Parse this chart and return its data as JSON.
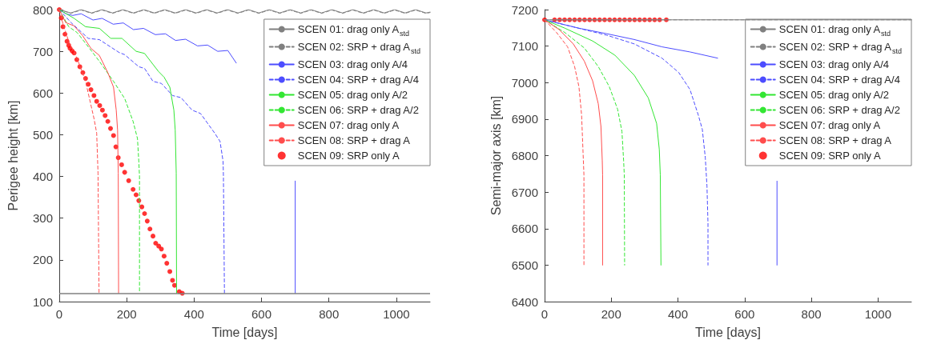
{
  "chart_data": [
    {
      "type": "line",
      "xlabel": "Time [days]",
      "ylabel": "Perigee height [km]",
      "xlim": [
        0,
        1100
      ],
      "ylim": [
        100,
        800
      ],
      "xticks": [
        0,
        200,
        400,
        600,
        800,
        1000
      ],
      "yticks": [
        100,
        200,
        300,
        400,
        500,
        600,
        700,
        800
      ],
      "grid": false,
      "legend": "top right",
      "marker": "none",
      "ref_lines": [
        {
          "axis": "y",
          "value": 120,
          "color": "#808080"
        }
      ],
      "series": [
        {
          "name": "SCEN 01: drag only A$_{std}$",
          "color": "#808080",
          "line_style": "solid",
          "x": [
            0,
            34,
            65,
            96,
            127,
            158,
            189,
            220,
            251,
            282,
            313,
            344,
            375,
            406,
            437,
            468,
            499,
            530,
            561,
            592,
            623,
            654,
            685,
            716,
            747,
            778,
            809,
            840,
            871,
            902,
            933,
            964,
            995,
            1026,
            1057,
            1088,
            1100
          ],
          "values": [
            800,
            792,
            800,
            792,
            800,
            792,
            800,
            792,
            800,
            792,
            800,
            792,
            800,
            792,
            800,
            792,
            800,
            792,
            800,
            792,
            800,
            792,
            800,
            792,
            800,
            792,
            800,
            792,
            800,
            792,
            800,
            792,
            800,
            792,
            800,
            792,
            794
          ]
        },
        {
          "name": "SCEN 02: SRP + drag A$_{std}$",
          "color": "#808080",
          "line_style": "dashed",
          "x": [
            0,
            34,
            65,
            96,
            127,
            158,
            189,
            220,
            251,
            282,
            313,
            344,
            375,
            406,
            437,
            468,
            499,
            530,
            561,
            592,
            623,
            654,
            685,
            716,
            747,
            778,
            809,
            840,
            871,
            902,
            933,
            964,
            995,
            1026,
            1057,
            1088,
            1100
          ],
          "values": [
            800,
            791,
            799,
            791,
            799,
            791,
            799,
            791,
            799,
            791,
            799,
            791,
            799,
            791,
            799,
            791,
            799,
            791,
            799,
            791,
            799,
            791,
            799,
            791,
            799,
            791,
            799,
            791,
            799,
            791,
            799,
            791,
            799,
            791,
            799,
            791,
            793
          ]
        },
        {
          "name": "SCEN 03: drag only A/4",
          "color": "#4d4dff",
          "line_style": "solid",
          "x": [
            0,
            20,
            40,
            65,
            100,
            127,
            160,
            190,
            220,
            250,
            285,
            315,
            345,
            375,
            410,
            440,
            470,
            500,
            525,
            600,
            700,
            700
          ],
          "values": [
            800,
            790,
            786,
            790,
            775,
            779,
            765,
            768,
            752,
            755,
            740,
            742,
            726,
            729,
            713,
            715,
            700,
            702,
            672,
            null,
            389,
            120
          ]
        },
        {
          "name": "SCEN 04: SRP + drag A/4",
          "color": "#4d4dff",
          "line_style": "dashed",
          "x": [
            0,
            36,
            86,
            119,
            178,
            194,
            236,
            253,
            278,
            303,
            336,
            361,
            394,
            419,
            461,
            477,
            486,
            487,
            490
          ],
          "values": [
            800,
            768,
            731,
            728,
            697,
            692,
            663,
            659,
            628,
            623,
            594,
            589,
            559,
            551,
            504,
            484,
            436,
            401,
            120
          ]
        },
        {
          "name": "SCEN 05: drag only A/2",
          "color": "#33e633",
          "line_style": "solid",
          "x": [
            0,
            44,
            78,
            119,
            153,
            186,
            228,
            253,
            294,
            311,
            328,
            340,
            344,
            347,
            348
          ],
          "values": [
            800,
            779,
            759,
            755,
            731,
            731,
            700,
            695,
            652,
            638,
            614,
            559,
            511,
            408,
            120
          ]
        },
        {
          "name": "SCEN 06: SRP + drag A/2",
          "color": "#33e633",
          "line_style": "dashed",
          "x": [
            0,
            28,
            53,
            86,
            119,
            161,
            194,
            219,
            232,
            236,
            238,
            238
          ],
          "values": [
            800,
            759,
            745,
            711,
            676,
            628,
            587,
            532,
            491,
            436,
            401,
            120
          ]
        },
        {
          "name": "SCEN 07: drag only A",
          "color": "#ff4d4d",
          "line_style": "solid",
          "x": [
            0,
            19,
            44,
            69,
            94,
            119,
            144,
            161,
            169,
            173,
            175,
            176
          ],
          "values": [
            800,
            769,
            761,
            738,
            707,
            690,
            649,
            614,
            559,
            511,
            408,
            120
          ]
        },
        {
          "name": "SCEN 08: SRP + drag A",
          "color": "#ff4d4d",
          "line_style": "dashed",
          "x": [
            0,
            11,
            28,
            53,
            78,
            103,
            111,
            115,
            118
          ],
          "values": [
            800,
            766,
            724,
            683,
            628,
            539,
            504,
            408,
            120
          ]
        },
        {
          "name": "SCEN 09: SRP only A",
          "type": "scatter",
          "color": "#ff0000",
          "marker": "circle",
          "x": [
            0,
            6,
            11,
            17,
            23,
            28,
            32,
            38,
            44,
            52,
            61,
            70,
            78,
            86,
            94,
            103,
            111,
            120,
            128,
            136,
            144,
            152,
            161,
            168,
            175,
            185,
            194,
            206,
            219,
            228,
            236,
            245,
            253,
            261,
            269,
            278,
            286,
            295,
            303,
            311,
            319,
            328,
            336,
            342,
            356,
            365
          ],
          "values": [
            800,
            780,
            759,
            741,
            724,
            714,
            707,
            701,
            696,
            680,
            663,
            649,
            635,
            621,
            608,
            594,
            580,
            570,
            559,
            546,
            532,
            515,
            498,
            471,
            445,
            428,
            410,
            390,
            369,
            356,
            342,
            327,
            311,
            293,
            274,
            257,
            240,
            233,
            226,
            209,
            192,
            172,
            151,
            139,
            124,
            120
          ]
        }
      ]
    },
    {
      "type": "line",
      "xlabel": "Time [days]",
      "ylabel": "Semi-major axis [km]",
      "xlim": [
        0,
        1100
      ],
      "ylim": [
        6400,
        7200
      ],
      "xticks": [
        0,
        200,
        400,
        600,
        800,
        1000
      ],
      "yticks": [
        6400,
        6500,
        6600,
        6700,
        6800,
        6900,
        7000,
        7100,
        7200
      ],
      "grid": false,
      "legend": "top right",
      "marker": "none",
      "series": [
        {
          "name": "SCEN 01: drag only A$_{std}$",
          "color": "#808080",
          "line_style": "solid",
          "x": [
            0,
            1100
          ],
          "values": [
            7172,
            7172
          ]
        },
        {
          "name": "SCEN 02: SRP + drag A$_{std}$",
          "color": "#808080",
          "line_style": "dashed",
          "x": [
            0,
            1100
          ],
          "values": [
            7172,
            7172
          ]
        },
        {
          "name": "SCEN 03: drag only A/4",
          "color": "#4d4dff",
          "line_style": "solid",
          "x": [
            0,
            103,
            186,
            269,
            352,
            436,
            519,
            600,
            697,
            697
          ],
          "values": [
            7172,
            7149,
            7134,
            7118,
            7098,
            7084,
            7067,
            null,
            6730,
            6500
          ]
        },
        {
          "name": "SCEN 04: SRP + drag A/4",
          "color": "#4d4dff",
          "line_style": "dashed",
          "x": [
            0,
            186,
            269,
            352,
            402,
            436,
            461,
            473,
            482,
            487,
            490,
            490
          ],
          "values": [
            7172,
            7130,
            7106,
            7067,
            7028,
            6981,
            6911,
            6872,
            6794,
            6716,
            6615,
            6500
          ]
        },
        {
          "name": "SCEN 05: drag only A/2",
          "color": "#33e633",
          "line_style": "solid",
          "x": [
            0,
            61,
            144,
            211,
            269,
            311,
            336,
            344,
            347,
            349
          ],
          "values": [
            7172,
            7149,
            7114,
            7075,
            7020,
            6958,
            6888,
            6817,
            6747,
            6500
          ]
        },
        {
          "name": "SCEN 06: SRP + drag A/2",
          "color": "#33e633",
          "line_style": "dashed",
          "x": [
            0,
            61,
            119,
            161,
            194,
            219,
            232,
            237,
            239,
            240
          ],
          "values": [
            7172,
            7137,
            7095,
            7044,
            6989,
            6927,
            6866,
            6786,
            6747,
            6500
          ]
        },
        {
          "name": "SCEN 07: drag only A",
          "color": "#ff4d4d",
          "line_style": "solid",
          "x": [
            0,
            44,
            86,
            119,
            144,
            161,
            169,
            173,
            174,
            174
          ],
          "values": [
            7172,
            7145,
            7106,
            7059,
            7005,
            6942,
            6880,
            6786,
            6747,
            6500
          ]
        },
        {
          "name": "SCEN 08: SRP + drag A",
          "color": "#ff4d4d",
          "line_style": "dashed",
          "x": [
            0,
            36,
            69,
            90,
            103,
            111,
            115,
            118,
            118
          ],
          "values": [
            7172,
            7137,
            7098,
            7044,
            6989,
            6911,
            6817,
            6747,
            6500
          ]
        },
        {
          "name": "SCEN 09: SRP only A",
          "type": "scatter",
          "color": "#ff0000",
          "marker": "circle",
          "x": [
            0,
            30,
            45,
            60,
            75,
            90,
            105,
            120,
            135,
            150,
            165,
            180,
            195,
            210,
            225,
            240,
            255,
            270,
            285,
            300,
            315,
            330,
            345,
            365
          ],
          "values": [
            7172,
            7172,
            7172,
            7172,
            7172,
            7172,
            7172,
            7172,
            7172,
            7172,
            7172,
            7172,
            7172,
            7172,
            7172,
            7172,
            7172,
            7172,
            7172,
            7172,
            7172,
            7172,
            7172,
            7172
          ]
        }
      ]
    }
  ]
}
